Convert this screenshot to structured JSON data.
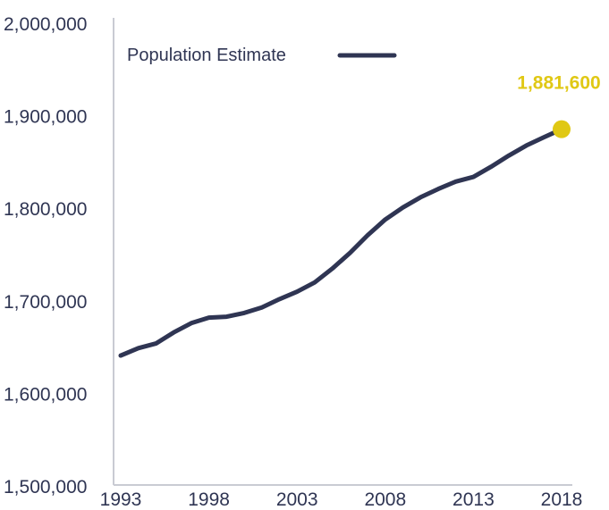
{
  "chart_data": {
    "type": "line",
    "x": [
      1993,
      1994,
      1995,
      1996,
      1997,
      1998,
      1999,
      2000,
      2001,
      2002,
      2003,
      2004,
      2005,
      2006,
      2007,
      2008,
      2009,
      2010,
      2011,
      2012,
      2013,
      2014,
      2015,
      2016,
      2017,
      2018
    ],
    "series": [
      {
        "name": "Population Estimate",
        "color": "#2f3553",
        "values": [
          1637000,
          1645000,
          1650000,
          1662000,
          1672000,
          1678000,
          1679000,
          1683000,
          1689000,
          1698000,
          1706000,
          1716000,
          1731000,
          1748000,
          1767000,
          1784000,
          1797000,
          1808000,
          1817000,
          1825000,
          1830000,
          1841000,
          1853000,
          1864000,
          1873000,
          1881600
        ]
      }
    ],
    "xlim": [
      1993,
      2018
    ],
    "ylim": [
      1500000,
      2000000
    ],
    "x_ticks": [
      "1993",
      "1998",
      "2003",
      "2008",
      "2013",
      "2018"
    ],
    "y_ticks": [
      "1,500,000",
      "1,600,000",
      "1,700,000",
      "1,800,000",
      "1,900,000",
      "2,000,000"
    ],
    "grid": false,
    "legend_position": "top-left",
    "highlight": {
      "x": 2018,
      "y": 1881600,
      "label": "1,881,600",
      "color": "#e0c814"
    },
    "axis_color": "#c9cbd3"
  }
}
